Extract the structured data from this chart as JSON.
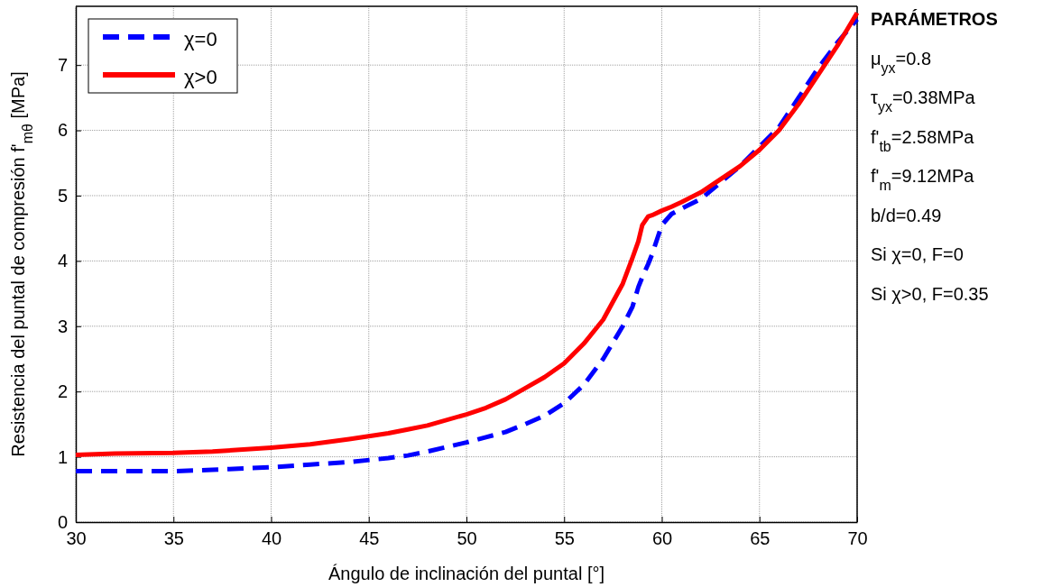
{
  "chart_data": {
    "type": "line",
    "xlabel": "Ángulo de inclinación del puntal [°]",
    "ylabel": "Resistencia del puntal de compresión f'$_{mθ}$ [MPa]",
    "xlim": [
      30,
      70
    ],
    "xticks": [
      30,
      35,
      40,
      45,
      50,
      55,
      60,
      65,
      70
    ],
    "ylim": [
      0,
      7.9
    ],
    "yticks": [
      0,
      1,
      2,
      3,
      4,
      5,
      6,
      7
    ],
    "grid": true,
    "legend": "top left",
    "x": [
      30,
      32,
      35,
      37,
      40,
      42,
      44,
      46,
      47,
      48,
      50,
      51,
      52,
      53,
      54,
      55,
      56,
      57,
      58,
      58.5,
      58.8,
      59,
      59.3,
      59.5,
      60,
      60.5,
      61,
      62,
      63,
      64,
      65,
      66,
      67,
      68,
      69,
      70
    ],
    "series": [
      {
        "name": "χ=0",
        "color": "#0000ff",
        "line_style": "dashed",
        "values": [
          0.78,
          0.78,
          0.78,
          0.8,
          0.84,
          0.88,
          0.92,
          0.98,
          1.02,
          1.08,
          1.22,
          1.3,
          1.38,
          1.5,
          1.63,
          1.82,
          2.1,
          2.5,
          3.0,
          3.3,
          3.6,
          3.75,
          3.95,
          4.1,
          4.55,
          4.72,
          4.8,
          4.95,
          5.2,
          5.45,
          5.75,
          6.05,
          6.5,
          6.95,
          7.35,
          7.7
        ]
      },
      {
        "name": "χ>0",
        "color": "#ff0000",
        "line_style": "solid",
        "values": [
          1.03,
          1.05,
          1.06,
          1.08,
          1.14,
          1.19,
          1.27,
          1.36,
          1.42,
          1.48,
          1.65,
          1.75,
          1.88,
          2.05,
          2.22,
          2.43,
          2.73,
          3.1,
          3.65,
          4.05,
          4.3,
          4.55,
          4.68,
          4.7,
          4.77,
          4.83,
          4.9,
          5.05,
          5.25,
          5.45,
          5.7,
          6.0,
          6.4,
          6.85,
          7.3,
          7.8
        ]
      }
    ],
    "annotations": [
      "PARÁMETROS",
      "μ$_{yx}$=0.8",
      "τ$_{yx}$=0.38MPa",
      "f'$_{tb}$=2.58MPa",
      "f'$_{m}$=9.12MPa",
      "b/d=0.49",
      "Si χ=0, F=0",
      "Si χ>0, F=0.35"
    ]
  }
}
